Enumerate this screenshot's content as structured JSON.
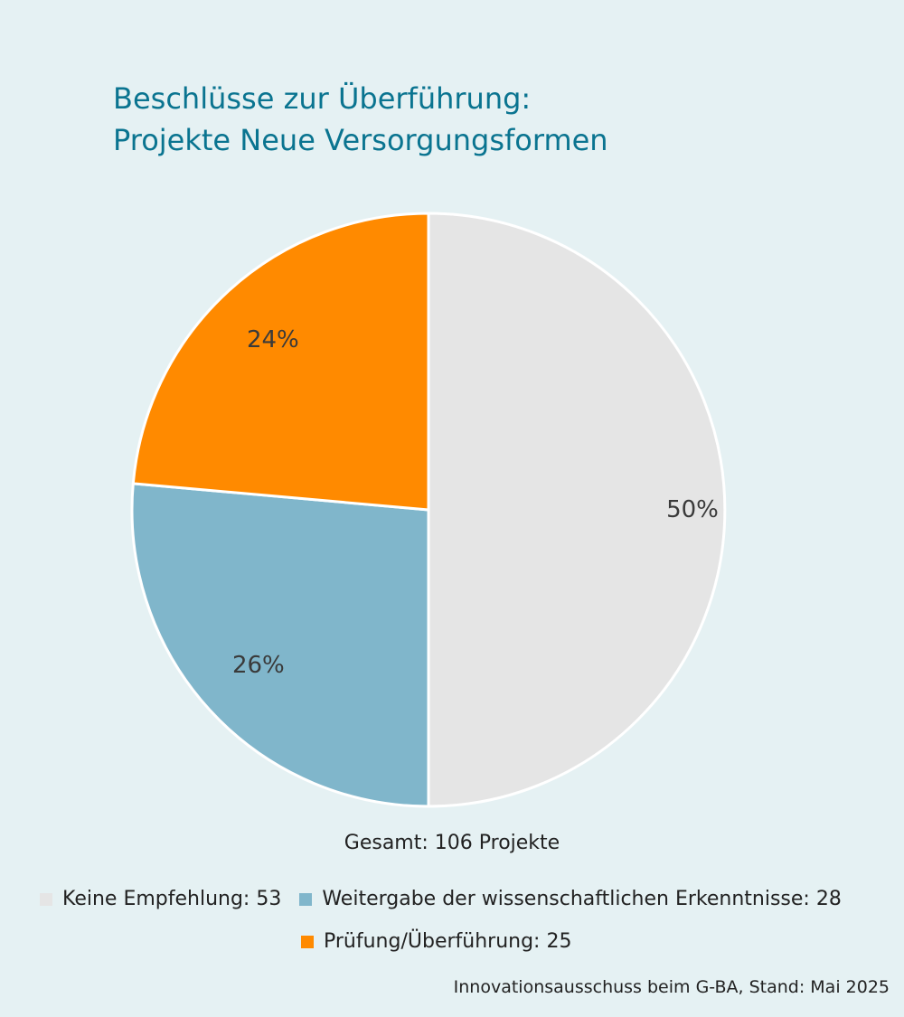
{
  "chart_data": {
    "type": "pie",
    "title_lines": [
      "Beschlüsse zur Überführung:",
      "Projekte Neue Versorgungsformen"
    ],
    "slices": [
      {
        "label": "Keine Empfehlung: 53",
        "value": 53,
        "percent_label": "50%",
        "color": "#e5e5e5"
      },
      {
        "label": "Weitergabe der wissenschaftlichen Erkenntnisse: 28",
        "value": 28,
        "percent_label": "26%",
        "color": "#80b6cb"
      },
      {
        "label": "Prüfung/Überführung: 25",
        "value": 25,
        "percent_label": "24%",
        "color": "#ff8a00"
      }
    ],
    "total_text": "Gesamt: 106 Projekte",
    "legend_placement": "bottom",
    "source": "Innovationsausschuss beim G-BA, Stand: Mai 2025"
  }
}
